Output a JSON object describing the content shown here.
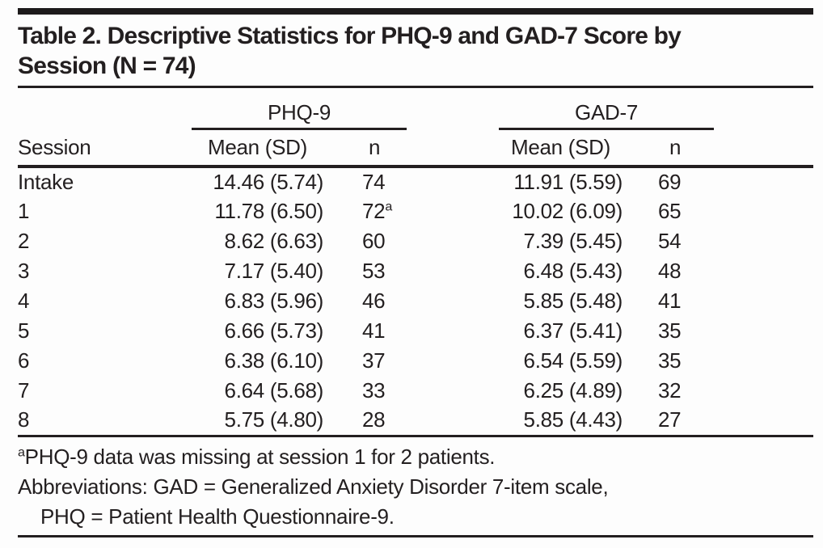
{
  "page": {
    "background": "#fdfdfd",
    "text_color": "#231f20"
  },
  "table": {
    "title_line1": "Table 2. Descriptive Statistics for PHQ-9 and GAD-7 Score by",
    "title_line2": "Session (N = 74)",
    "groups": {
      "phq": "PHQ-9",
      "gad": "GAD-7"
    },
    "headers": {
      "session": "Session",
      "phq_mean": "Mean (SD)",
      "phq_n": "n",
      "gad_mean": "Mean (SD)",
      "gad_n": "n"
    },
    "rows": [
      {
        "session": "Intake",
        "phq_mean": "14.46 (5.74)",
        "phq_n": "74",
        "phq_n_sup": "",
        "gad_mean": "11.91 (5.59)",
        "gad_n": "69"
      },
      {
        "session": "1",
        "phq_mean": "11.78 (6.50)",
        "phq_n": "72",
        "phq_n_sup": "a",
        "gad_mean": "10.02 (6.09)",
        "gad_n": "65"
      },
      {
        "session": "2",
        "phq_mean": "8.62 (6.63)",
        "phq_n": "60",
        "phq_n_sup": "",
        "gad_mean": "7.39 (5.45)",
        "gad_n": "54"
      },
      {
        "session": "3",
        "phq_mean": "7.17 (5.40)",
        "phq_n": "53",
        "phq_n_sup": "",
        "gad_mean": "6.48 (5.43)",
        "gad_n": "48"
      },
      {
        "session": "4",
        "phq_mean": "6.83 (5.96)",
        "phq_n": "46",
        "phq_n_sup": "",
        "gad_mean": "5.85 (5.48)",
        "gad_n": "41"
      },
      {
        "session": "5",
        "phq_mean": "6.66 (5.73)",
        "phq_n": "41",
        "phq_n_sup": "",
        "gad_mean": "6.37 (5.41)",
        "gad_n": "35"
      },
      {
        "session": "6",
        "phq_mean": "6.38 (6.10)",
        "phq_n": "37",
        "phq_n_sup": "",
        "gad_mean": "6.54 (5.59)",
        "gad_n": "35"
      },
      {
        "session": "7",
        "phq_mean": "6.64 (5.68)",
        "phq_n": "33",
        "phq_n_sup": "",
        "gad_mean": "6.25 (4.89)",
        "gad_n": "32"
      },
      {
        "session": "8",
        "phq_mean": "5.75 (4.80)",
        "phq_n": "28",
        "phq_n_sup": "",
        "gad_mean": "5.85 (4.43)",
        "gad_n": "27"
      }
    ],
    "footnotes": {
      "a_sup": "a",
      "a_text": "PHQ-9 data was missing at session 1 for 2 patients.",
      "abbrev_line1": "Abbreviations: GAD = Generalized Anxiety Disorder 7-item scale,",
      "abbrev_line2": "PHQ = Patient Health Questionnaire-9."
    }
  }
}
